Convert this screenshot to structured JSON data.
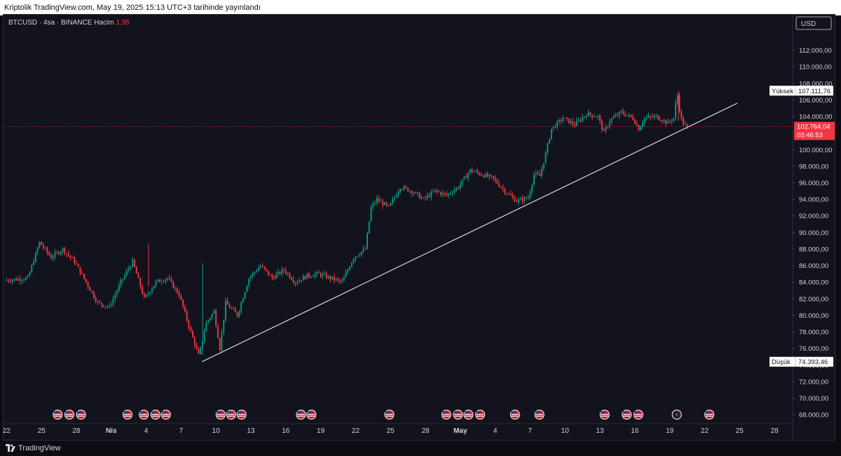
{
  "header": {
    "publish_text": "Kriptolik TradingView.com, May 19, 2025 15:13 UTC+3 tarihinde yayınlandı"
  },
  "legend": {
    "symbol": "BTCUSD · 4sa · BINANCE",
    "volume_label": "Hacim",
    "volume_value": "1,95"
  },
  "footer": {
    "brand": "TradingView"
  },
  "chart_data": {
    "type": "candlestick",
    "currency": "USD",
    "y_ticks": [
      68000,
      70000,
      72000,
      74000,
      76000,
      78000,
      80000,
      82000,
      84000,
      86000,
      88000,
      90000,
      92000,
      94000,
      96000,
      98000,
      100000,
      102000,
      104000,
      106000,
      108000,
      110000,
      112000
    ],
    "y_tick_labels": [
      "68.000,00",
      "70.000,00",
      "72.000,00",
      "74.000,00",
      "76.000,00",
      "78.000,00",
      "80.000,00",
      "82.000,00",
      "84.000,00",
      "86.000,00",
      "88.000,00",
      "90.000,00",
      "92.000,00",
      "94.000,00",
      "96.000,00",
      "98.000,00",
      "100.000,00",
      "102.000,00",
      "104.000,00",
      "106.000,00",
      "108.000,00",
      "110.000,00",
      "112.000,00"
    ],
    "ylim": [
      67000,
      114500
    ],
    "x_tick_labels": [
      "22",
      "25",
      "28",
      "Nis",
      "4",
      "7",
      "10",
      "13",
      "16",
      "19",
      "22",
      "25",
      "28",
      "May",
      "4",
      "7",
      "10",
      "13",
      "16",
      "19",
      "22",
      "25",
      "28"
    ],
    "x_tick_days": [
      0,
      3,
      6,
      9,
      12,
      15,
      18,
      21,
      24,
      27,
      30,
      33,
      36,
      39,
      42,
      45,
      48,
      51,
      54,
      57,
      60,
      63,
      66
    ],
    "xlim_days": [
      -0.2,
      67.5
    ],
    "bold_x_labels": [
      "Nis",
      "May"
    ],
    "current_price": {
      "value": 102764.04,
      "label": "102.764,04",
      "countdown": "03:46:53"
    },
    "high_marker": {
      "name": "Yüksek",
      "value": 107111.76,
      "label": "107.111,76"
    },
    "low_marker": {
      "name": "Düşük",
      "value": 74393.46,
      "label": "74.393,46"
    },
    "trendline": {
      "start_day": 16.8,
      "start_value": 74400,
      "end_day": 62.8,
      "end_value": 105600
    },
    "anchors": [
      [
        0,
        84200
      ],
      [
        2,
        84500
      ],
      [
        3,
        88800
      ],
      [
        4,
        87000
      ],
      [
        5,
        88000
      ],
      [
        6,
        86500
      ],
      [
        7,
        84000
      ],
      [
        8,
        81500
      ],
      [
        9,
        81000
      ],
      [
        10,
        84000
      ],
      [
        11,
        86500
      ],
      [
        12,
        82000
      ],
      [
        13,
        84000
      ],
      [
        14,
        84500
      ],
      [
        15,
        82500
      ],
      [
        16,
        78000
      ],
      [
        16.7,
        75000
      ],
      [
        17.3,
        79000
      ],
      [
        18,
        80500
      ],
      [
        18.5,
        76000
      ],
      [
        19,
        81500
      ],
      [
        20,
        80000
      ],
      [
        21,
        84500
      ],
      [
        22,
        86000
      ],
      [
        23,
        84500
      ],
      [
        24,
        85500
      ],
      [
        25,
        84000
      ],
      [
        26,
        84800
      ],
      [
        27,
        85000
      ],
      [
        28,
        84500
      ],
      [
        29,
        84000
      ],
      [
        30,
        87000
      ],
      [
        31,
        88000
      ],
      [
        31.5,
        93000
      ],
      [
        32,
        94000
      ],
      [
        33,
        93000
      ],
      [
        34,
        95500
      ],
      [
        35,
        95000
      ],
      [
        36,
        94000
      ],
      [
        37,
        95000
      ],
      [
        38,
        94500
      ],
      [
        39,
        95500
      ],
      [
        40,
        97500
      ],
      [
        41,
        97000
      ],
      [
        42,
        96500
      ],
      [
        43,
        95000
      ],
      [
        44,
        93800
      ],
      [
        45,
        94200
      ],
      [
        45.5,
        97000
      ],
      [
        46,
        96800
      ],
      [
        46.5,
        99500
      ],
      [
        47,
        102500
      ],
      [
        48,
        103800
      ],
      [
        49,
        103000
      ],
      [
        50,
        104300
      ],
      [
        51,
        104000
      ],
      [
        51.5,
        102000
      ],
      [
        52,
        103500
      ],
      [
        53,
        104500
      ],
      [
        54,
        103800
      ],
      [
        54.5,
        102500
      ],
      [
        55,
        103800
      ],
      [
        56,
        104000
      ],
      [
        57,
        103200
      ],
      [
        57.5,
        103800
      ],
      [
        57.8,
        106800
      ],
      [
        58.1,
        103900
      ],
      [
        58.4,
        103000
      ],
      [
        58.6,
        102764
      ]
    ],
    "event_icon_days": [
      4.4,
      5.4,
      6.4,
      10.4,
      11.8,
      12.8,
      13.7,
      18.4,
      19.3,
      20.2,
      25.3,
      26.2,
      32.9,
      37.8,
      38.8,
      39.7,
      40.7,
      43.7,
      45.8,
      51.4,
      53.3,
      54.3,
      57.6,
      60.4
    ],
    "event_icon_special_day": 57.6,
    "colors": {
      "up": "#089981",
      "down": "#f23645",
      "trendline": "#e8e8e8",
      "current": "#f23645",
      "background": "#12131c",
      "text": "#d1d4dc",
      "grid": "#1c1f2a"
    }
  }
}
